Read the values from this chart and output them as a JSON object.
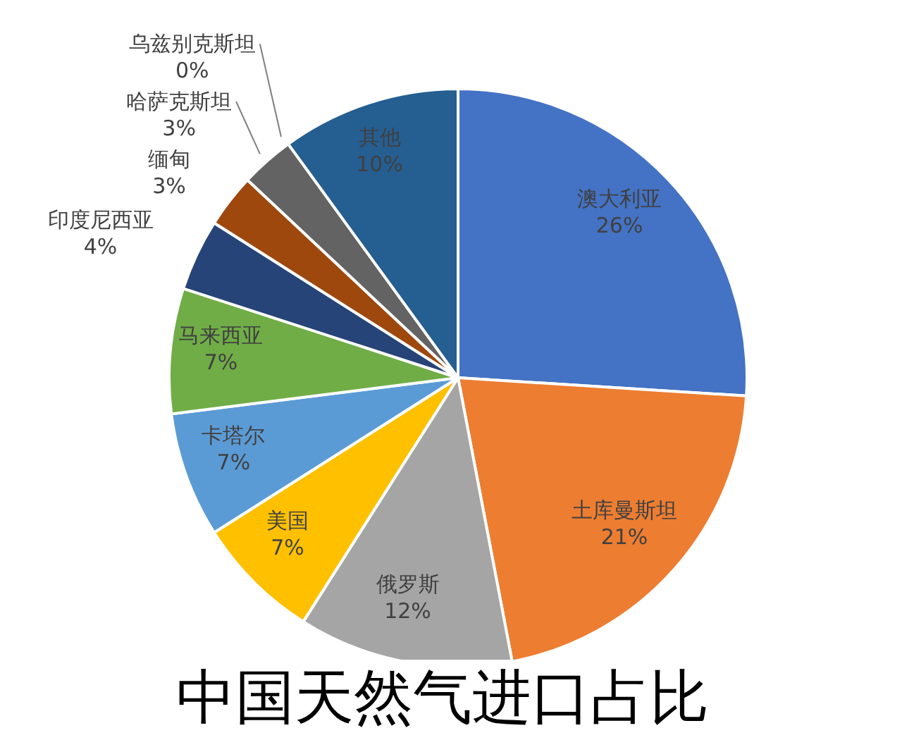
{
  "chart_data": {
    "type": "pie",
    "title": "中国天然气进口占比",
    "categories": [
      "澳大利亚",
      "土库曼斯坦",
      "俄罗斯",
      "美国",
      "卡塔尔",
      "马来西亚",
      "印度尼西亚",
      "缅甸",
      "哈萨克斯坦",
      "乌兹别克斯坦",
      "其他"
    ],
    "values": [
      26,
      21,
      12,
      7,
      7,
      7,
      4,
      3,
      3,
      0,
      10
    ],
    "colors": [
      "#4472c4",
      "#ed7d31",
      "#a5a5a5",
      "#ffc000",
      "#5b9bd5",
      "#70ad47",
      "#264478",
      "#9e480e",
      "#636363",
      "#997300",
      "#255e91"
    ],
    "value_labels": [
      "26%",
      "21%",
      "12%",
      "7%",
      "7%",
      "7%",
      "4%",
      "3%",
      "3%",
      "0%",
      "10%"
    ]
  }
}
